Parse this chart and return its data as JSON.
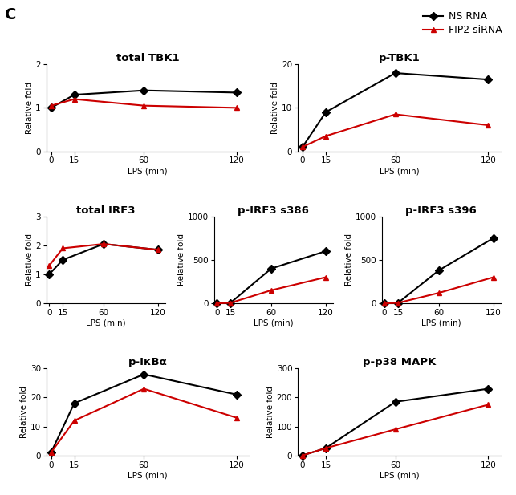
{
  "x": [
    0,
    15,
    60,
    120
  ],
  "plots": [
    {
      "title": "total TBK1",
      "ns": [
        1.0,
        1.3,
        1.4,
        1.35
      ],
      "fip2": [
        1.05,
        1.2,
        1.05,
        1.0
      ],
      "ylim": [
        0,
        2
      ],
      "yticks": [
        0,
        1,
        2
      ],
      "row": 0,
      "col": 0,
      "colspan": 3
    },
    {
      "title": "p-TBK1",
      "ns": [
        1.0,
        9.0,
        18.0,
        16.5
      ],
      "fip2": [
        1.0,
        3.5,
        8.5,
        6.0
      ],
      "ylim": [
        0,
        20
      ],
      "yticks": [
        0,
        10,
        20
      ],
      "row": 0,
      "col": 3,
      "colspan": 3
    },
    {
      "title": "total IRF3",
      "ns": [
        1.0,
        1.5,
        2.05,
        1.85
      ],
      "fip2": [
        1.3,
        1.9,
        2.05,
        1.85
      ],
      "ylim": [
        0,
        3
      ],
      "yticks": [
        0,
        1,
        2,
        3
      ],
      "row": 1,
      "col": 0,
      "colspan": 2
    },
    {
      "title": "p-IRF3 s386",
      "ns": [
        0,
        5,
        400,
        600
      ],
      "fip2": [
        0,
        5,
        150,
        300
      ],
      "ylim": [
        0,
        1000
      ],
      "yticks": [
        0,
        500,
        1000
      ],
      "row": 1,
      "col": 2,
      "colspan": 2
    },
    {
      "title": "p-IRF3 s396",
      "ns": [
        0,
        5,
        380,
        750
      ],
      "fip2": [
        0,
        5,
        120,
        300
      ],
      "ylim": [
        0,
        1000
      ],
      "yticks": [
        0,
        500,
        1000
      ],
      "row": 1,
      "col": 4,
      "colspan": 2
    },
    {
      "title": "p-IκBα",
      "ns": [
        1,
        18,
        28,
        21
      ],
      "fip2": [
        1,
        12,
        23,
        13
      ],
      "ylim": [
        0,
        30
      ],
      "yticks": [
        0,
        10,
        20,
        30
      ],
      "row": 2,
      "col": 0,
      "colspan": 3
    },
    {
      "title": "p-p38 MAPK",
      "ns": [
        0,
        25,
        185,
        230
      ],
      "fip2": [
        0,
        25,
        90,
        175
      ],
      "ylim": [
        0,
        300
      ],
      "yticks": [
        0,
        100,
        200,
        300
      ],
      "row": 2,
      "col": 3,
      "colspan": 3
    }
  ],
  "ns_color": "#000000",
  "fip2_color": "#cc0000",
  "ns_marker": "D",
  "fip2_marker": "^",
  "xlabel": "LPS (min)",
  "ylabel": "Relative fold",
  "legend_ns": "NS RNA",
  "legend_fip2": "FIP2 siRNA",
  "panel_label": "C",
  "title_fontsize": 9.5,
  "axis_fontsize": 7.5,
  "tick_fontsize": 7.5,
  "marker_size": 5,
  "line_width": 1.5
}
